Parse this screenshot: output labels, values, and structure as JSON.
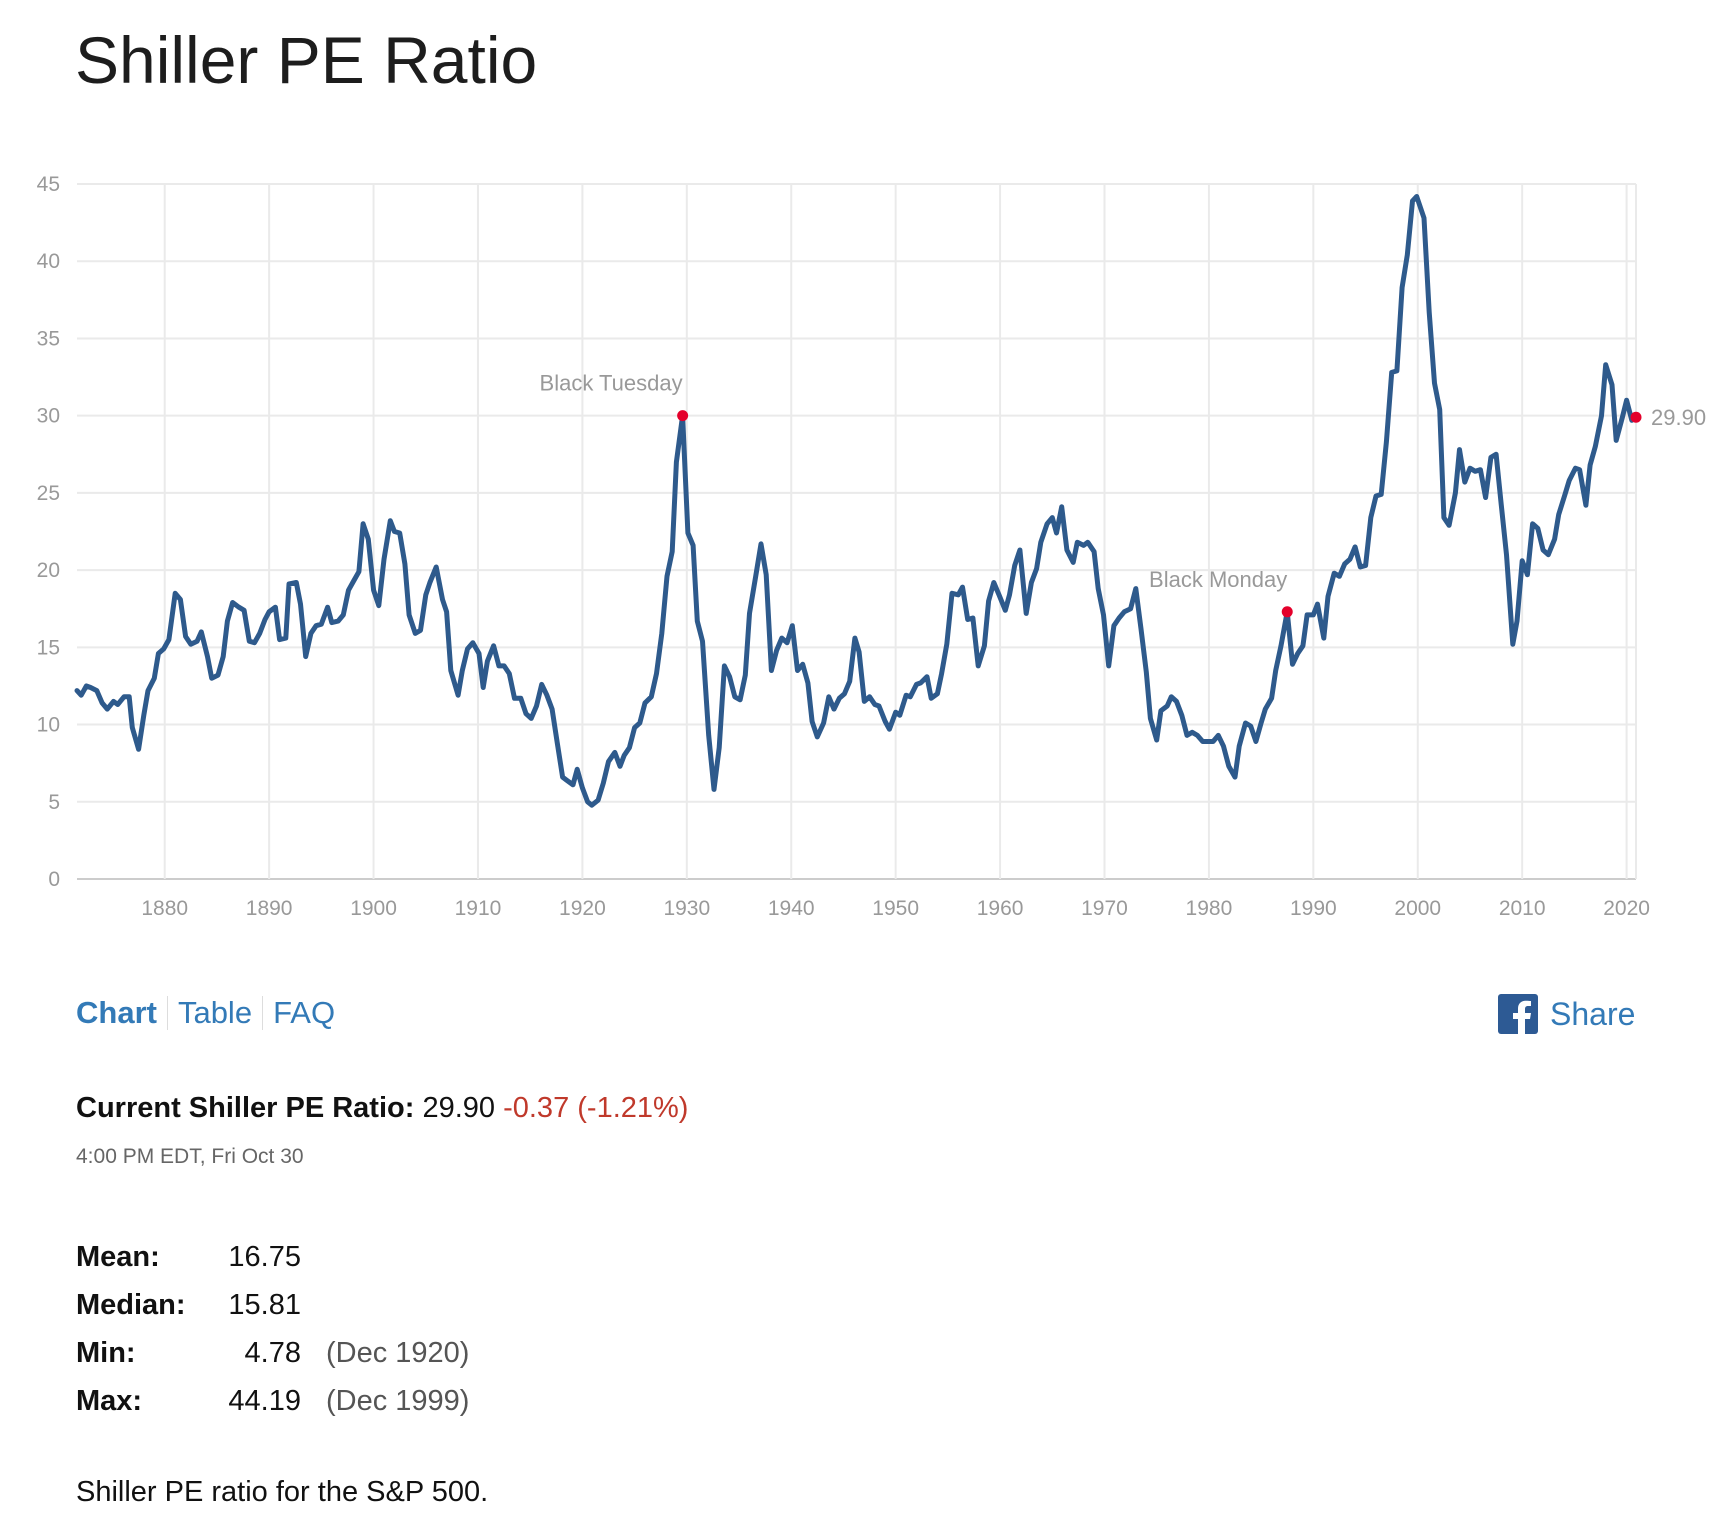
{
  "page": {
    "title": "Shiller PE Ratio"
  },
  "chart_data": {
    "type": "line",
    "title": "",
    "xlabel": "",
    "ylabel": "",
    "xlim": [
      1871.6,
      2020.9
    ],
    "ylim": [
      0,
      45
    ],
    "grid": true,
    "legend": "none",
    "line_color": "#2e5a8c",
    "marker_color": "#e4002b",
    "y_ticks": [
      0,
      5,
      10,
      15,
      20,
      25,
      30,
      35,
      40,
      45
    ],
    "x_ticks": [
      1880,
      1890,
      1900,
      1910,
      1920,
      1930,
      1940,
      1950,
      1960,
      1970,
      1980,
      1990,
      2000,
      2010,
      2020
    ],
    "x": [
      1871.6,
      1872.0,
      1872.5,
      1872.9,
      1873.5,
      1874.0,
      1874.5,
      1875.1,
      1875.5,
      1876.1,
      1876.6,
      1876.9,
      1877.5,
      1878.0,
      1878.4,
      1879.0,
      1879.4,
      1879.9,
      1880.4,
      1881.0,
      1881.5,
      1882.0,
      1882.5,
      1883.1,
      1883.5,
      1884.1,
      1884.5,
      1885.1,
      1885.6,
      1886.0,
      1886.5,
      1887.1,
      1887.6,
      1888.1,
      1888.6,
      1889.1,
      1889.6,
      1890.0,
      1890.6,
      1891.0,
      1891.6,
      1891.9,
      1892.6,
      1893.0,
      1893.5,
      1894.0,
      1894.5,
      1895.0,
      1895.6,
      1896.0,
      1896.6,
      1897.1,
      1897.6,
      1898.1,
      1898.6,
      1899.0,
      1899.5,
      1900.0,
      1900.5,
      1901.0,
      1901.6,
      1902.0,
      1902.5,
      1903.0,
      1903.4,
      1904.0,
      1904.5,
      1905.0,
      1905.4,
      1906.0,
      1906.6,
      1907.0,
      1907.4,
      1908.1,
      1908.5,
      1909.0,
      1909.5,
      1910.1,
      1910.5,
      1910.9,
      1911.5,
      1912.0,
      1912.5,
      1913.0,
      1913.5,
      1914.1,
      1914.6,
      1915.1,
      1915.6,
      1916.1,
      1916.6,
      1917.1,
      1917.6,
      1918.1,
      1918.5,
      1919.1,
      1919.5,
      1920.0,
      1920.5,
      1920.9,
      1921.5,
      1922.0,
      1922.5,
      1923.1,
      1923.6,
      1924.0,
      1924.5,
      1925.0,
      1925.5,
      1926.0,
      1926.6,
      1927.1,
      1927.6,
      1928.1,
      1928.6,
      1929.0,
      1929.6,
      1930.1,
      1930.6,
      1931.0,
      1931.5,
      1932.1,
      1932.6,
      1933.1,
      1933.6,
      1934.1,
      1934.6,
      1935.1,
      1935.6,
      1936.0,
      1936.6,
      1937.1,
      1937.6,
      1938.1,
      1938.6,
      1939.1,
      1939.6,
      1940.1,
      1940.6,
      1941.1,
      1941.6,
      1942.0,
      1942.5,
      1943.1,
      1943.6,
      1944.1,
      1944.6,
      1945.1,
      1945.6,
      1946.1,
      1946.5,
      1947.0,
      1947.5,
      1948.0,
      1948.4,
      1949.0,
      1949.4,
      1950.0,
      1950.4,
      1951.0,
      1951.4,
      1952.0,
      1952.4,
      1953.0,
      1953.4,
      1954.0,
      1954.4,
      1954.9,
      1955.4,
      1956.0,
      1956.4,
      1956.9,
      1957.4,
      1957.9,
      1958.5,
      1958.9,
      1959.4,
      1959.9,
      1960.5,
      1960.9,
      1961.4,
      1961.9,
      1962.5,
      1963.0,
      1963.5,
      1963.9,
      1964.5,
      1965.0,
      1965.4,
      1965.9,
      1966.4,
      1967.0,
      1967.4,
      1968.0,
      1968.4,
      1969.0,
      1969.4,
      1969.9,
      1970.4,
      1970.9,
      1971.4,
      1971.9,
      1972.5,
      1973.0,
      1973.5,
      1974.0,
      1974.4,
      1975.0,
      1975.4,
      1976.0,
      1976.4,
      1976.9,
      1977.4,
      1977.9,
      1978.4,
      1978.9,
      1979.4,
      1979.9,
      1980.4,
      1980.9,
      1981.4,
      1981.9,
      1982.5,
      1982.9,
      1983.5,
      1984.0,
      1984.5,
      1985.0,
      1985.4,
      1986.0,
      1986.4,
      1986.9,
      1987.5,
      1988.0,
      1988.5,
      1989.0,
      1989.4,
      1990.0,
      1990.4,
      1991.0,
      1991.4,
      1992.0,
      1992.5,
      1993.0,
      1993.5,
      1994.0,
      1994.5,
      1995.0,
      1995.5,
      1996.0,
      1996.5,
      1997.0,
      1997.5,
      1998.0,
      1998.5,
      1999.0,
      1999.5,
      1999.9,
      2000.6,
      2001.1,
      2001.6,
      2002.1,
      2002.5,
      2003.0,
      2003.6,
      2004.0,
      2004.5,
      2005.0,
      2005.5,
      2006.0,
      2006.5,
      2007.0,
      2007.5,
      2008.0,
      2008.5,
      2009.1,
      2009.5,
      2010.0,
      2010.5,
      2011.0,
      2011.5,
      2012.0,
      2012.5,
      2013.1,
      2013.5,
      2014.1,
      2014.5,
      2015.1,
      2015.5,
      2016.1,
      2016.5,
      2017.0,
      2017.6,
      2018.0,
      2018.6,
      2019.0,
      2019.6,
      2020.0,
      2020.5,
      2020.9
    ],
    "y": [
      12.2,
      11.9,
      12.5,
      12.4,
      12.2,
      11.4,
      11.0,
      11.5,
      11.3,
      11.8,
      11.8,
      9.8,
      8.4,
      10.6,
      12.2,
      13.0,
      14.6,
      14.9,
      15.5,
      18.5,
      18.1,
      15.7,
      15.2,
      15.4,
      16.0,
      14.4,
      13.0,
      13.2,
      14.4,
      16.7,
      17.9,
      17.6,
      17.4,
      15.4,
      15.3,
      15.9,
      16.8,
      17.3,
      17.6,
      15.5,
      15.6,
      19.1,
      19.2,
      17.8,
      14.4,
      15.9,
      16.4,
      16.5,
      17.6,
      16.6,
      16.7,
      17.1,
      18.7,
      19.3,
      19.9,
      23.0,
      22.0,
      18.7,
      17.7,
      20.7,
      23.2,
      22.5,
      22.4,
      20.4,
      17.1,
      15.9,
      16.1,
      18.4,
      19.2,
      20.2,
      18.1,
      17.3,
      13.5,
      11.9,
      13.5,
      14.9,
      15.3,
      14.6,
      12.4,
      14.1,
      15.1,
      13.8,
      13.8,
      13.3,
      11.7,
      11.7,
      10.7,
      10.4,
      11.2,
      12.6,
      11.9,
      11.0,
      8.8,
      6.6,
      6.4,
      6.1,
      7.1,
      5.9,
      5.0,
      4.78,
      5.1,
      6.2,
      7.6,
      8.2,
      7.3,
      8.0,
      8.5,
      9.8,
      10.1,
      11.4,
      11.8,
      13.3,
      15.9,
      19.6,
      21.2,
      27.0,
      30.0,
      22.4,
      21.6,
      16.7,
      15.4,
      9.3,
      5.8,
      8.5,
      13.8,
      13.1,
      11.8,
      11.6,
      13.2,
      17.2,
      19.6,
      21.7,
      19.7,
      13.5,
      14.8,
      15.6,
      15.3,
      16.4,
      13.5,
      13.9,
      12.7,
      10.2,
      9.2,
      10.1,
      11.8,
      11.0,
      11.7,
      12.0,
      12.8,
      15.6,
      14.7,
      11.5,
      11.8,
      11.3,
      11.2,
      10.2,
      9.7,
      10.8,
      10.6,
      11.9,
      11.8,
      12.6,
      12.7,
      13.1,
      11.7,
      12.0,
      13.3,
      15.2,
      18.5,
      18.4,
      18.9,
      16.8,
      16.9,
      13.8,
      15.1,
      18.0,
      19.2,
      18.4,
      17.4,
      18.4,
      20.3,
      21.3,
      17.2,
      19.2,
      20.1,
      21.8,
      23.0,
      23.4,
      22.4,
      24.1,
      21.3,
      20.5,
      21.8,
      21.6,
      21.8,
      21.2,
      18.8,
      17.1,
      13.8,
      16.4,
      16.9,
      17.3,
      17.5,
      18.8,
      16.2,
      13.4,
      10.4,
      9.0,
      10.9,
      11.2,
      11.8,
      11.5,
      10.6,
      9.3,
      9.5,
      9.3,
      8.9,
      8.9,
      8.9,
      9.3,
      8.6,
      7.3,
      6.6,
      8.6,
      10.1,
      9.9,
      8.9,
      10.1,
      11.0,
      11.7,
      13.5,
      15.1,
      17.3,
      13.9,
      14.6,
      15.1,
      17.1,
      17.1,
      17.8,
      15.6,
      18.3,
      19.8,
      19.6,
      20.4,
      20.7,
      21.5,
      20.2,
      20.3,
      23.4,
      24.8,
      24.9,
      28.3,
      32.8,
      32.9,
      38.3,
      40.4,
      43.9,
      44.19,
      42.8,
      36.7,
      32.1,
      30.4,
      23.4,
      22.9,
      25.0,
      27.8,
      25.7,
      26.6,
      26.4,
      26.5,
      24.7,
      27.3,
      27.5,
      24.2,
      21.0,
      15.2,
      16.7,
      20.6,
      19.7,
      23.0,
      22.7,
      21.3,
      21.0,
      22.0,
      23.6,
      24.9,
      25.8,
      26.6,
      26.5,
      24.2,
      26.8,
      28.0,
      30.0,
      33.3,
      32.0,
      28.4,
      29.9,
      31.0,
      29.7,
      29.9
    ],
    "annotations": [
      {
        "label": "Black Tuesday",
        "x": 1929.6,
        "y": 30.0
      },
      {
        "label": "Black Monday",
        "x": 1987.5,
        "y": 17.3
      }
    ],
    "last_value_label": "29.90"
  },
  "tabs": [
    {
      "label": "Chart",
      "active": true
    },
    {
      "label": "Table",
      "active": false
    },
    {
      "label": "FAQ",
      "active": false
    }
  ],
  "share": {
    "label": "Share",
    "icon": "facebook-icon"
  },
  "current": {
    "label": "Current Shiller PE Ratio:",
    "value": "29.90",
    "change": "-0.37 (-1.21%)",
    "change_color": "#c0392b",
    "timestamp": "4:00 PM EDT, Fri Oct 30"
  },
  "stats": [
    {
      "label": "Mean:",
      "value": "16.75",
      "date": ""
    },
    {
      "label": "Median:",
      "value": "15.81",
      "date": ""
    },
    {
      "label": "Min:",
      "value": "4.78",
      "date": "(Dec 1920)"
    },
    {
      "label": "Max:",
      "value": "44.19",
      "date": "(Dec 1999)"
    }
  ],
  "description": "Shiller PE ratio for the S&P 500."
}
